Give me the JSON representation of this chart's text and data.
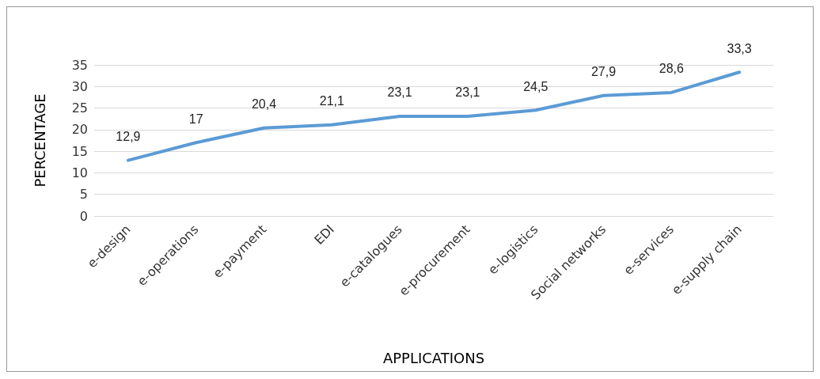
{
  "chart_data": {
    "type": "line",
    "xlabel": "APPLICATIONS",
    "ylabel": "PERCENTAGE",
    "categories": [
      "e-design",
      "e-operations",
      "e-payment",
      "EDI",
      "e-catalogues",
      "e-procurement",
      "e-logistics",
      "Social networks",
      "e-services",
      "e-supply chain"
    ],
    "series": [
      {
        "color": "#5b9bd5",
        "values": [
          12.9,
          17,
          20.4,
          21.1,
          23.1,
          23.1,
          24.5,
          27.9,
          28.6,
          33.3
        ],
        "value_labels": [
          "12,9",
          "17",
          "20,4",
          "21,1",
          "23,1",
          "23,1",
          "24,5",
          "27,9",
          "28,6",
          "33,3"
        ]
      }
    ],
    "ylim": [
      0,
      35
    ],
    "yticks": [
      0,
      5,
      10,
      15,
      20,
      25,
      30,
      35
    ],
    "grid": "y",
    "marker": "none",
    "line_style": "solid"
  }
}
